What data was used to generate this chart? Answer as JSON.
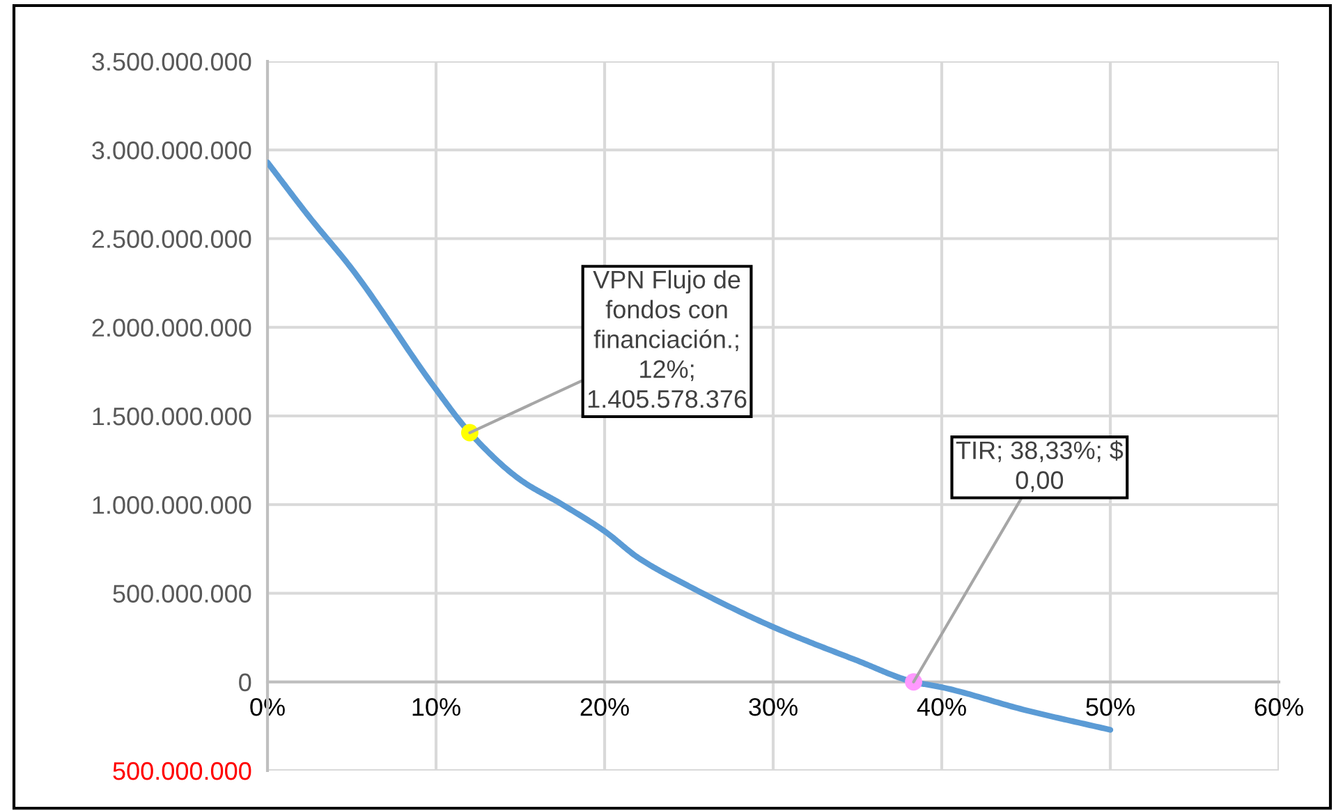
{
  "chart_data": {
    "type": "line",
    "x": [
      0,
      2.5,
      5,
      10,
      12,
      15,
      17.5,
      20,
      22,
      25,
      30,
      35,
      38.33,
      40,
      45,
      50
    ],
    "series": [
      {
        "marker": "none",
        "color": "#5b9bd5",
        "values": [
          2930000000,
          2620000000,
          2330000000,
          1650000000,
          1405578376,
          1140000000,
          1000000000,
          850000000,
          700000000,
          540000000,
          310000000,
          120000000,
          0,
          -30000000,
          -160000000,
          -270000000
        ]
      },
      {
        "type": "scatter",
        "marker": "circle",
        "x": [
          12
        ],
        "color": "#ffff00",
        "values": [
          1405578376
        ]
      },
      {
        "type": "scatter",
        "marker": "circle",
        "x": [
          38.33
        ],
        "color": "#ff99ff",
        "values": [
          0
        ]
      }
    ],
    "xlim": [
      0,
      60
    ],
    "xticks": [
      {
        "value": 0,
        "label": "0%"
      },
      {
        "value": 10,
        "label": "10%"
      },
      {
        "value": 20,
        "label": "20%"
      },
      {
        "value": 30,
        "label": "30%"
      },
      {
        "value": 40,
        "label": "40%"
      },
      {
        "value": 50,
        "label": "50%"
      },
      {
        "value": 60,
        "label": "60%"
      }
    ],
    "ylim": [
      -500000000,
      3500000000
    ],
    "yticks": [
      {
        "value": -500000000,
        "label": "500.000.000"
      },
      {
        "value": 0,
        "label": "0"
      },
      {
        "value": 500000000,
        "label": "500.000.000"
      },
      {
        "value": 1000000000,
        "label": "1.000.000.000"
      },
      {
        "value": 1500000000,
        "label": "1.500.000.000"
      },
      {
        "value": 2000000000,
        "label": "2.000.000.000"
      },
      {
        "value": 2500000000,
        "label": "2.500.000.000"
      },
      {
        "value": 3000000000,
        "label": "3.000.000.000"
      },
      {
        "value": 3500000000,
        "label": "3.500.000.000"
      }
    ],
    "annotations": [
      {
        "text": "VPN Flujo de\nfondos con\nfinanciación.;\n12%;\n1.405.578.376",
        "x": 12,
        "y": 1405578376
      },
      {
        "text": "TIR; 38,33%; $\n0,00",
        "x": 38.33,
        "y": 0
      }
    ],
    "grid": true,
    "legend": false,
    "line_style": "solid"
  }
}
